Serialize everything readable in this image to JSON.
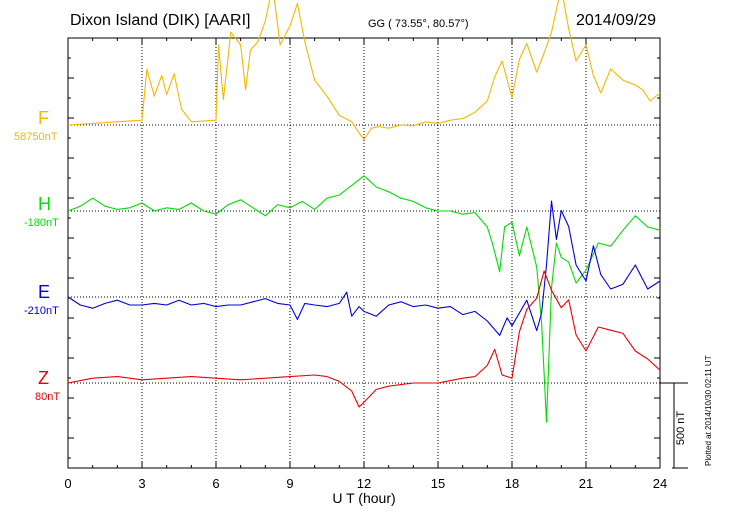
{
  "header": {
    "station": "Dixon Island (DIK)  [AARI]",
    "coords": "GG ( 73.55°,  80.57°)",
    "date": "2014/09/29"
  },
  "plot_note": "Plotted at 2014/10/30 02:11 UT",
  "chart_data": {
    "type": "line",
    "title": "Dixon Island (DIK)  [AARI]",
    "xlabel": "U T (hour)",
    "xlim": [
      0,
      24
    ],
    "xticks": [
      "0",
      "3",
      "6",
      "9",
      "12",
      "15",
      "18",
      "21",
      "24"
    ],
    "scale_bar_label": "500 nT",
    "scale_bar_nT": 500,
    "grid": "dotted",
    "series": [
      {
        "name": "F",
        "baseline_label": "58750nT",
        "color": "#f5b800",
        "x": [
          0,
          1,
          2,
          3,
          3.2,
          3.5,
          3.8,
          4,
          4.3,
          4.6,
          5,
          6,
          6.1,
          6.3,
          6.6,
          7,
          7.2,
          7.4,
          7.7,
          8,
          8.3,
          8.6,
          9,
          9.3,
          9.6,
          10,
          10.5,
          11,
          11.5,
          11.8,
          12,
          12.3,
          12.6,
          13,
          13.5,
          14,
          14.5,
          15,
          15.5,
          16,
          16.5,
          17,
          17.3,
          17.6,
          18,
          18.3,
          18.6,
          19,
          19.3,
          19.6,
          20,
          20.3,
          20.6,
          21,
          21.3,
          21.6,
          22,
          22.5,
          23,
          23.3,
          23.6,
          24
        ],
        "y": [
          0,
          10,
          20,
          30,
          350,
          180,
          310,
          190,
          320,
          100,
          20,
          30,
          500,
          160,
          580,
          500,
          220,
          470,
          520,
          650,
          870,
          500,
          620,
          760,
          520,
          280,
          180,
          60,
          20,
          -50,
          -90,
          -20,
          -10,
          -20,
          0,
          -5,
          20,
          10,
          30,
          40,
          80,
          150,
          300,
          400,
          170,
          410,
          510,
          330,
          450,
          580,
          860,
          600,
          400,
          500,
          310,
          200,
          350,
          280,
          250,
          220,
          150,
          200
        ]
      },
      {
        "name": "H",
        "baseline_label": "-180nT",
        "color": "#00dd00",
        "x": [
          0,
          0.5,
          1,
          1.5,
          2,
          2.5,
          3,
          3.5,
          4,
          4.5,
          5,
          5.5,
          6,
          6.5,
          7,
          7.5,
          8,
          8.5,
          9,
          9.5,
          10,
          10.5,
          11,
          11.5,
          12,
          12.5,
          13,
          13.5,
          14,
          14.5,
          15,
          15.5,
          16,
          16.5,
          17,
          17.2,
          17.5,
          17.7,
          18,
          18.3,
          18.6,
          19,
          19.2,
          19.4,
          19.6,
          19.8,
          20,
          20.3,
          20.6,
          21,
          21.5,
          22,
          22.5,
          23,
          23.5,
          24
        ],
        "y": [
          0,
          30,
          80,
          30,
          10,
          20,
          50,
          0,
          20,
          10,
          50,
          0,
          -20,
          40,
          70,
          20,
          -30,
          40,
          20,
          60,
          10,
          80,
          100,
          160,
          220,
          150,
          120,
          80,
          60,
          20,
          0,
          0,
          -20,
          -10,
          -100,
          -200,
          -380,
          -100,
          -70,
          -280,
          -100,
          -350,
          -700,
          -1320,
          -480,
          -200,
          -290,
          -320,
          -450,
          -370,
          -200,
          -220,
          -120,
          -30,
          -100,
          -120
        ]
      },
      {
        "name": "E",
        "baseline_label": "-210nT",
        "color": "#0000dd",
        "x": [
          0,
          0.5,
          1,
          1.5,
          2,
          2.5,
          3,
          3.5,
          4,
          4.5,
          5,
          5.5,
          6,
          6.5,
          7,
          7.5,
          8,
          8.5,
          9,
          9.3,
          9.6,
          10,
          10.5,
          11,
          11.3,
          11.5,
          11.8,
          12,
          12.5,
          13,
          13.5,
          14,
          14.5,
          15,
          15.5,
          16,
          16.5,
          17,
          17.5,
          17.8,
          18,
          18.3,
          18.6,
          19,
          19.2,
          19.4,
          19.6,
          19.8,
          20,
          20.3,
          20.6,
          21,
          21.3,
          21.6,
          22,
          22.5,
          23,
          23.5,
          24
        ],
        "y": [
          0,
          -50,
          -70,
          -40,
          -20,
          -50,
          -50,
          -40,
          -50,
          -20,
          -50,
          -40,
          -60,
          -50,
          -50,
          -30,
          -10,
          -40,
          -50,
          -140,
          -40,
          -50,
          -60,
          -40,
          30,
          -120,
          -60,
          -90,
          -120,
          -50,
          -30,
          -60,
          -50,
          -70,
          -60,
          -110,
          -90,
          -150,
          -240,
          -130,
          -180,
          -100,
          -20,
          -210,
          -100,
          200,
          600,
          360,
          540,
          440,
          200,
          100,
          320,
          140,
          50,
          80,
          200,
          50,
          100
        ]
      },
      {
        "name": "Z",
        "baseline_label": "80nT",
        "color": "#ee0000",
        "x": [
          0,
          1,
          2,
          3,
          4,
          5,
          6,
          7,
          8,
          9,
          10,
          10.5,
          11,
          11.5,
          11.8,
          12,
          12.5,
          13,
          13.5,
          14,
          15,
          16,
          16.5,
          17,
          17.3,
          17.6,
          18,
          18.3,
          18.6,
          19,
          19.3,
          19.6,
          20,
          20.3,
          20.6,
          21,
          21.5,
          22,
          22.5,
          23,
          23.5,
          24
        ],
        "y": [
          0,
          30,
          40,
          20,
          30,
          40,
          30,
          20,
          30,
          40,
          50,
          40,
          10,
          -50,
          -150,
          -120,
          -40,
          -20,
          -10,
          0,
          0,
          30,
          40,
          110,
          210,
          50,
          30,
          320,
          460,
          530,
          700,
          580,
          470,
          520,
          300,
          200,
          350,
          330,
          310,
          200,
          150,
          80
        ]
      }
    ]
  }
}
